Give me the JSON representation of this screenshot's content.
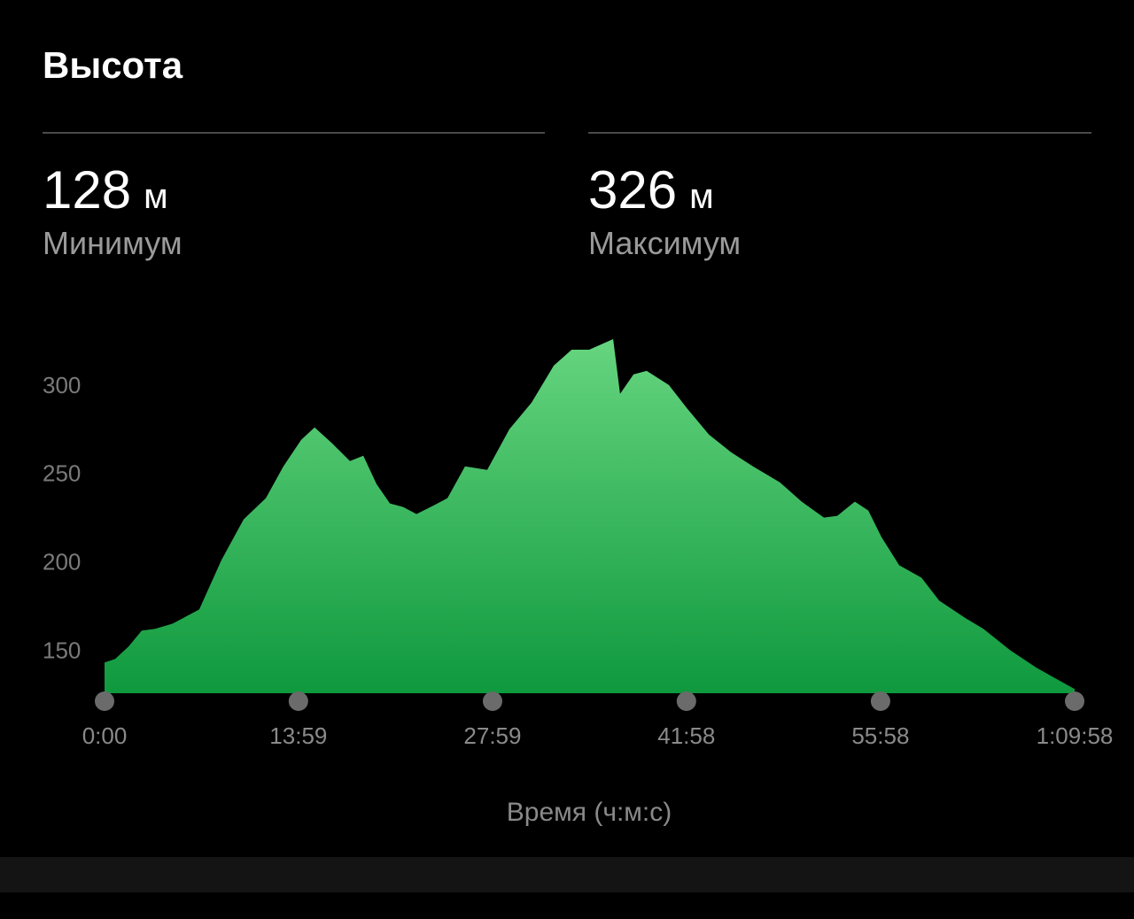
{
  "header": {
    "title": "Высота"
  },
  "stats": [
    {
      "value": 128,
      "unit": "м",
      "label": "Минимум"
    },
    {
      "value": 326,
      "unit": "м",
      "label": "Максимум"
    }
  ],
  "chart_data": {
    "type": "area",
    "xlabel": "Время (ч:м:с)",
    "x": [
      0,
      46,
      104,
      161,
      219,
      295,
      410,
      506,
      602,
      698,
      774,
      851,
      909,
      985,
      1062,
      1120,
      1177,
      1235,
      1292,
      1350,
      1426,
      1484,
      1560,
      1656,
      1752,
      1848,
      1944,
      2021,
      2097,
      2201,
      2231,
      2289,
      2346,
      2442,
      2519,
      2615,
      2711,
      2806,
      2922,
      3017,
      3113,
      3171,
      3247,
      3305,
      3362,
      3439,
      3535,
      3612,
      3727,
      3803,
      3918,
      4033,
      4129,
      4198
    ],
    "values": [
      143,
      145,
      152,
      161,
      162,
      165,
      173,
      201,
      224,
      236,
      254,
      269,
      276,
      267,
      257,
      260,
      244,
      233,
      231,
      227,
      232,
      236,
      254,
      252,
      275,
      290,
      311,
      320,
      320,
      326,
      295,
      306,
      308,
      300,
      287,
      272,
      262,
      254,
      245,
      234,
      225,
      226,
      234,
      229,
      214,
      198,
      191,
      178,
      168,
      162,
      150,
      140,
      133,
      128
    ],
    "gradient": [
      "#66d57f",
      "#0f993e"
    ],
    "xlim": [
      0,
      4198
    ],
    "xticks": [
      {
        "value": 0,
        "label": "0:00"
      },
      {
        "value": 839,
        "label": "13:59"
      },
      {
        "value": 1679,
        "label": "27:59"
      },
      {
        "value": 2518,
        "label": "41:58"
      },
      {
        "value": 3358,
        "label": "55:58"
      },
      {
        "value": 4198,
        "label": "1:09:58"
      }
    ],
    "ylim": [
      125.6,
      330
    ],
    "yticks": [
      150,
      200,
      250,
      300
    ],
    "grid": false
  }
}
